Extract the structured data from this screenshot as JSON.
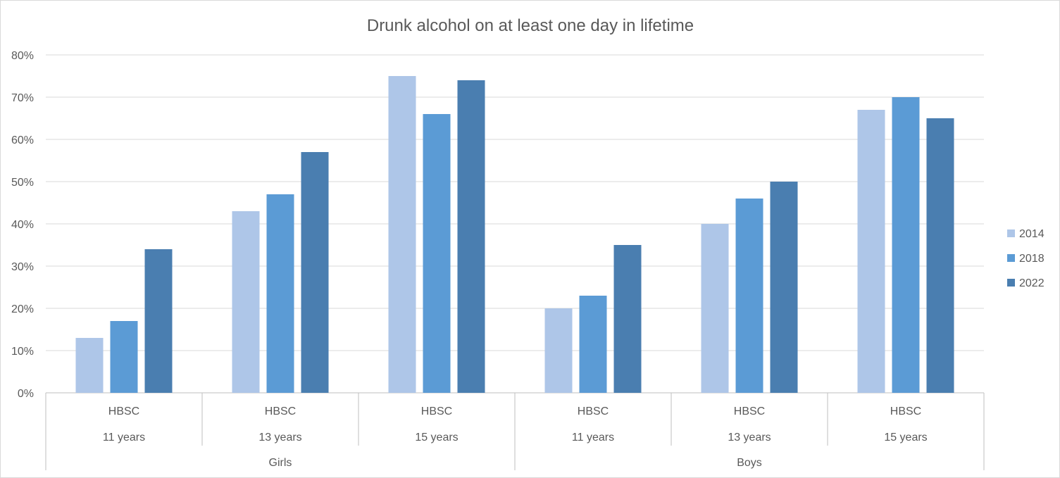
{
  "chart_data": {
    "type": "bar",
    "title": "Drunk alcohol on at least one day in lifetime",
    "xlabel": "",
    "ylabel": "",
    "ylim": [
      0,
      80
    ],
    "yticks": [
      "0%",
      "10%",
      "20%",
      "30%",
      "40%",
      "50%",
      "60%",
      "70%",
      "80%"
    ],
    "grid": true,
    "legend_position": "right",
    "category_levels": {
      "source": [
        "HBSC",
        "HBSC",
        "HBSC",
        "HBSC",
        "HBSC",
        "HBSC"
      ],
      "age": [
        "11 years",
        "13 years",
        "15 years",
        "11 years",
        "13 years",
        "15 years"
      ],
      "gender": [
        "Girls",
        "Boys"
      ]
    },
    "series": [
      {
        "name": "2014",
        "color": "#aec6e8",
        "values": [
          13,
          43,
          75,
          20,
          40,
          67
        ]
      },
      {
        "name": "2018",
        "color": "#5b9bd5",
        "values": [
          17,
          47,
          66,
          23,
          46,
          70
        ]
      },
      {
        "name": "2022",
        "color": "#4a7eb0",
        "values": [
          34,
          57,
          74,
          35,
          50,
          65
        ]
      }
    ]
  }
}
